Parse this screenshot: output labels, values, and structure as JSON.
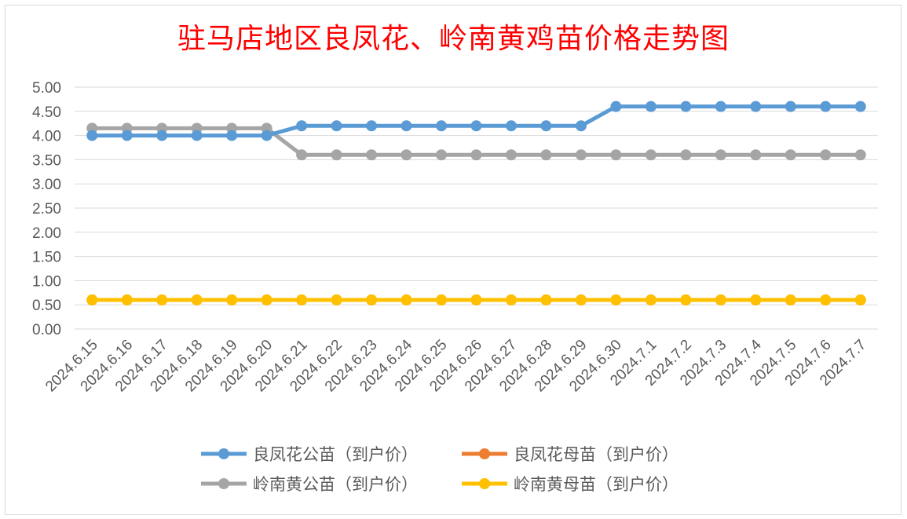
{
  "chart_data": {
    "type": "line",
    "title": "驻马店地区良凤花、岭南黄鸡苗价格走势图",
    "xlabel": "",
    "ylabel": "",
    "ylim": [
      0,
      5
    ],
    "ytick_step": 0.5,
    "ytick_decimals": 2,
    "grid": true,
    "legend_position": "bottom",
    "x": [
      "2024.6.15",
      "2024.6.16",
      "2024.6.17",
      "2024.6.18",
      "2024.6.19",
      "2024.6.20",
      "2024.6.21",
      "2024.6.22",
      "2024.6.23",
      "2024.6.24",
      "2024.6.25",
      "2024.6.26",
      "2024.6.27",
      "2024.6.28",
      "2024.6.29",
      "2024.6.30",
      "2024.7.1",
      "2024.7.2",
      "2024.7.3",
      "2024.7.4",
      "2024.7.5",
      "2024.7.6",
      "2024.7.7"
    ],
    "series": [
      {
        "name": "良凤花公苗（到户价）",
        "color": "#5b9bd5",
        "values": [
          4.0,
          4.0,
          4.0,
          4.0,
          4.0,
          4.0,
          4.2,
          4.2,
          4.2,
          4.2,
          4.2,
          4.2,
          4.2,
          4.2,
          4.2,
          4.6,
          4.6,
          4.6,
          4.6,
          4.6,
          4.6,
          4.6,
          4.6
        ]
      },
      {
        "name": "良凤花母苗（到户价）",
        "color": "#ed7d31",
        "values": [
          0.6,
          0.6,
          0.6,
          0.6,
          0.6,
          0.6,
          0.6,
          0.6,
          0.6,
          0.6,
          0.6,
          0.6,
          0.6,
          0.6,
          0.6,
          0.6,
          0.6,
          0.6,
          0.6,
          0.6,
          0.6,
          0.6,
          0.6
        ]
      },
      {
        "name": "岭南黄公苗（到户价）",
        "color": "#a5a5a5",
        "values": [
          4.15,
          4.15,
          4.15,
          4.15,
          4.15,
          4.15,
          3.6,
          3.6,
          3.6,
          3.6,
          3.6,
          3.6,
          3.6,
          3.6,
          3.6,
          3.6,
          3.6,
          3.6,
          3.6,
          3.6,
          3.6,
          3.6,
          3.6
        ]
      },
      {
        "name": "岭南黄母苗（到户价）",
        "color": "#ffc000",
        "values": [
          0.6,
          0.6,
          0.6,
          0.6,
          0.6,
          0.6,
          0.6,
          0.6,
          0.6,
          0.6,
          0.6,
          0.6,
          0.6,
          0.6,
          0.6,
          0.6,
          0.6,
          0.6,
          0.6,
          0.6,
          0.6,
          0.6,
          0.6
        ]
      }
    ]
  }
}
